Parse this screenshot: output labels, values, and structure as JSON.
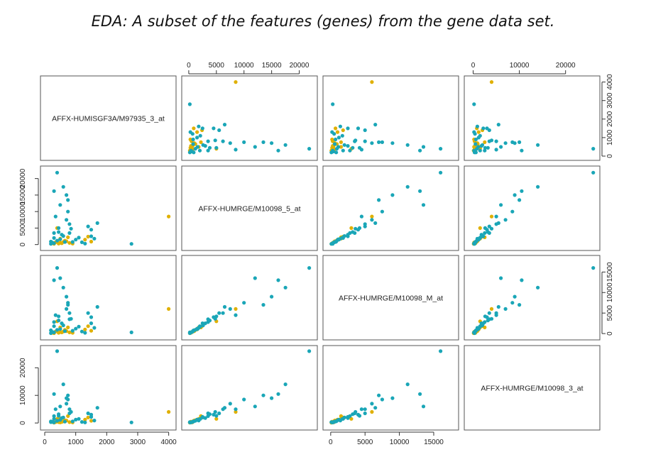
{
  "title": "EDA: A subset of the features (genes) from the gene data set.",
  "colors": {
    "group_a": "#1aa6b7",
    "group_b": "#e0b000",
    "frame": "#555555"
  },
  "chart_data": {
    "type": "scatter-matrix",
    "variables": [
      "AFFX-HUMISGF3A/M97935_3_at",
      "AFFX-HUMRGE/M10098_5_at",
      "AFFX-HUMRGE/M10098_M_at",
      "AFFX-HUMRGE/M10098_3_at"
    ],
    "ranges": [
      [
        0,
        4100
      ],
      [
        -500,
        22500
      ],
      [
        -500,
        18000
      ],
      [
        -1000,
        26500
      ]
    ],
    "ticks": [
      [
        0,
        1000,
        2000,
        3000,
        4000
      ],
      [
        0,
        5000,
        10000,
        15000,
        20000
      ],
      [
        0,
        5000,
        10000,
        15000
      ],
      [
        0,
        10000,
        20000
      ]
    ],
    "axis_layout": {
      "bottom": [
        [
          0,
          0
        ],
        [
          2,
          2
        ]
      ],
      "top": [
        [
          1,
          1
        ],
        [
          3,
          3
        ]
      ],
      "left": [
        [
          1,
          1
        ],
        [
          3,
          3
        ]
      ],
      "right": [
        [
          0,
          0
        ],
        [
          2,
          2
        ]
      ]
    },
    "groups": [
      "group_a",
      "group_b"
    ],
    "points": [
      {
        "g": "group_b",
        "v": [
          450,
          300,
          200,
          300
        ]
      },
      {
        "g": "group_b",
        "v": [
          500,
          600,
          400,
          200
        ]
      },
      {
        "g": "group_b",
        "v": [
          550,
          400,
          300,
          400
        ]
      },
      {
        "g": "group_b",
        "v": [
          600,
          800,
          500,
          600
        ]
      },
      {
        "g": "group_b",
        "v": [
          700,
          1000,
          600,
          900
        ]
      },
      {
        "g": "group_b",
        "v": [
          800,
          500,
          300,
          300
        ]
      },
      {
        "g": "group_b",
        "v": [
          1300,
          1500,
          1000,
          1200
        ]
      },
      {
        "g": "group_b",
        "v": [
          1400,
          2400,
          1800,
          2000
        ]
      },
      {
        "g": "group_b",
        "v": [
          1500,
          900,
          700,
          800
        ]
      },
      {
        "g": "group_b",
        "v": [
          400,
          5000,
          3000,
          1500
        ]
      },
      {
        "g": "group_b",
        "v": [
          4000,
          8500,
          6000,
          4000
        ]
      },
      {
        "g": "group_b",
        "v": [
          500,
          1800,
          1500,
          1500
        ]
      },
      {
        "g": "group_b",
        "v": [
          650,
          1200,
          900,
          1000
        ]
      },
      {
        "g": "group_b",
        "v": [
          300,
          200,
          100,
          100
        ]
      },
      {
        "g": "group_b",
        "v": [
          350,
          700,
          500,
          300
        ]
      },
      {
        "g": "group_b",
        "v": [
          900,
          300,
          200,
          200
        ]
      },
      {
        "g": "group_b",
        "v": [
          750,
          2200,
          1500,
          2500
        ]
      },
      {
        "g": "group_b",
        "v": [
          250,
          400,
          200,
          500
        ]
      },
      {
        "g": "group_a",
        "v": [
          400,
          21800,
          16000,
          26000
        ]
      },
      {
        "g": "group_a",
        "v": [
          300,
          16200,
          13000,
          10500
        ]
      },
      {
        "g": "group_a",
        "v": [
          600,
          17500,
          11200,
          14000
        ]
      },
      {
        "g": "group_a",
        "v": [
          700,
          15000,
          9000,
          9000
        ]
      },
      {
        "g": "group_a",
        "v": [
          750,
          13500,
          7000,
          10000
        ]
      },
      {
        "g": "group_a",
        "v": [
          500,
          12000,
          13500,
          6000
        ]
      },
      {
        "g": "group_a",
        "v": [
          1700,
          6500,
          6500,
          5500
        ]
      },
      {
        "g": "group_a",
        "v": [
          1400,
          5500,
          5000,
          3500
        ]
      },
      {
        "g": "group_a",
        "v": [
          2800,
          200,
          300,
          200
        ]
      },
      {
        "g": "group_a",
        "v": [
          1500,
          2500,
          2500,
          2200
        ]
      },
      {
        "g": "group_a",
        "v": [
          1500,
          4500,
          4000,
          3000
        ]
      },
      {
        "g": "group_a",
        "v": [
          800,
          3500,
          3500,
          3500
        ]
      },
      {
        "g": "group_a",
        "v": [
          300,
          2000,
          1800,
          1500
        ]
      },
      {
        "g": "group_a",
        "v": [
          200,
          900,
          800,
          600
        ]
      },
      {
        "g": "group_a",
        "v": [
          250,
          600,
          400,
          400
        ]
      },
      {
        "g": "group_a",
        "v": [
          350,
          8500,
          4500,
          5000
        ]
      },
      {
        "g": "group_a",
        "v": [
          450,
          5000,
          4200,
          2600
        ]
      },
      {
        "g": "group_a",
        "v": [
          550,
          3000,
          2500,
          1800
        ]
      },
      {
        "g": "group_a",
        "v": [
          650,
          800,
          600,
          500
        ]
      },
      {
        "g": "group_a",
        "v": [
          850,
          4800,
          3600,
          4000
        ]
      },
      {
        "g": "group_a",
        "v": [
          1000,
          1500,
          1200,
          1200
        ]
      },
      {
        "g": "group_a",
        "v": [
          1200,
          700,
          500,
          400
        ]
      },
      {
        "g": "group_a",
        "v": [
          1300,
          300,
          200,
          200
        ]
      },
      {
        "g": "group_a",
        "v": [
          1600,
          1800,
          1400,
          900
        ]
      },
      {
        "g": "group_a",
        "v": [
          200,
          200,
          100,
          300
        ]
      },
      {
        "g": "group_a",
        "v": [
          300,
          400,
          300,
          200
        ]
      },
      {
        "g": "group_a",
        "v": [
          400,
          1200,
          900,
          800
        ]
      },
      {
        "g": "group_a",
        "v": [
          500,
          1600,
          1100,
          1100
        ]
      },
      {
        "g": "group_a",
        "v": [
          600,
          2600,
          2000,
          2000
        ]
      },
      {
        "g": "group_a",
        "v": [
          700,
          7500,
          6000,
          7000
        ]
      },
      {
        "g": "group_a",
        "v": [
          750,
          10000,
          7500,
          8500
        ]
      },
      {
        "g": "group_a",
        "v": [
          800,
          6200,
          5000,
          5000
        ]
      },
      {
        "g": "group_a",
        "v": [
          900,
          800,
          700,
          600
        ]
      },
      {
        "g": "group_a",
        "v": [
          1100,
          2100,
          1700,
          1500
        ]
      },
      {
        "g": "group_a",
        "v": [
          300,
          3500,
          2800,
          2500
        ]
      },
      {
        "g": "group_a",
        "v": [
          450,
          3800,
          3200,
          3200
        ]
      }
    ]
  }
}
